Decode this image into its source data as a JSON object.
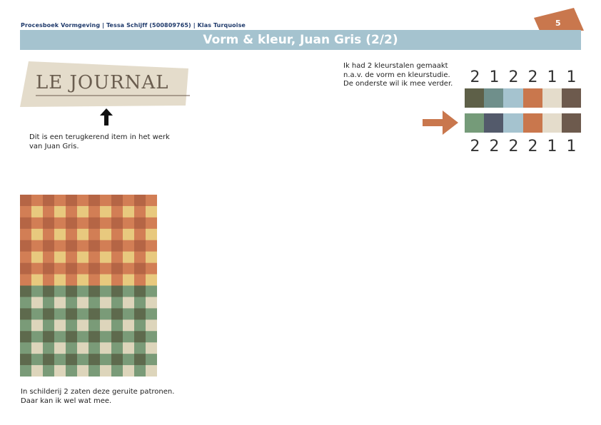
{
  "header": {
    "line": "Procesboek Vormgeving  |  Tessa Schijff (500809765)  |  Klas Turquoise",
    "page_number": "5",
    "tab_color": "#c9774d"
  },
  "title": "Vorm & kleur, Juan Gris (2/2)",
  "journal_label": "LE  JOURNAL",
  "text_journal": "Dit is een terugkerend item in het werk van Juan Gris.",
  "text_swatches": "Ik had 2 kleurstalen gemaakt n.a.v. de vorm en kleurstudie. De onderste wil ik mee verder.",
  "text_pattern": "In schilderij 2 zaten deze geruite patronen. Daar kan ik wel wat mee.",
  "swatches": {
    "top_digits": [
      "2",
      "1",
      "2",
      "2",
      "1",
      "1"
    ],
    "top_colors": [
      "#5e6048",
      "#6f8f8b",
      "#a5c3cf",
      "#c9774d",
      "#e4dccb",
      "#6d5a4d"
    ],
    "bottom_colors": [
      "#759b79",
      "#535a6b",
      "#a5c3cf",
      "#c9774d",
      "#e4dccb",
      "#6d5a4d"
    ],
    "bottom_digits": [
      "2",
      "2",
      "2",
      "2",
      "1",
      "1"
    ]
  },
  "pattern": {
    "top_colors": {
      "dark": "#b56545",
      "mid": "#d27e55",
      "light": "#e8c97e"
    },
    "bottom_colors": {
      "dark": "#5e6a4d",
      "mid": "#7a9b78",
      "light": "#ddd5bb"
    }
  },
  "accent_arrow": "#c9774d"
}
